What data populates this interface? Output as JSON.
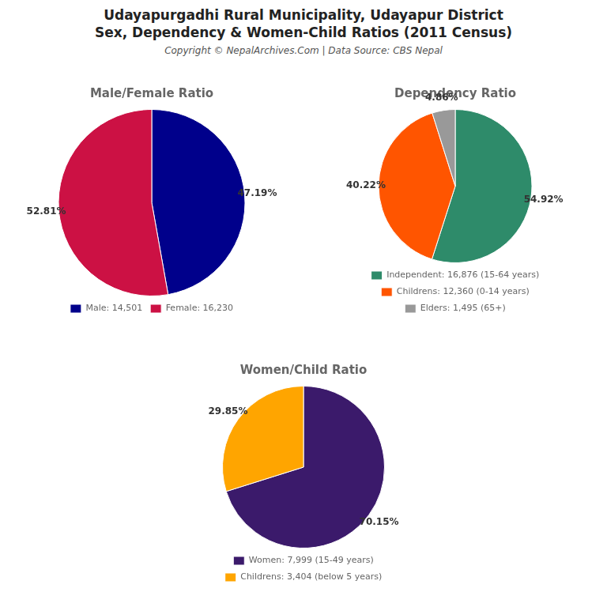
{
  "title": [
    "Udayapurgadhi Rural Municipality, Udayapur District",
    "Sex, Dependency & Women-Child Ratios (2011 Census)"
  ],
  "subtitle": "Copyright © NepalArchives.Com | Data Source: CBS Nepal",
  "chart_data": [
    {
      "type": "pie",
      "title": "Male/Female Ratio",
      "categories": [
        "Male: 14,501",
        "Female: 16,230"
      ],
      "values": [
        47.19,
        52.81
      ],
      "value_labels": [
        "47.19%",
        "52.81%"
      ],
      "colors": [
        "#00008B",
        "#CC1144"
      ],
      "data_labels": true,
      "legend": "bottom"
    },
    {
      "type": "pie",
      "title": "Dependency Ratio",
      "categories": [
        "Independent: 16,876 (15-64 years)",
        "Childrens: 12,360 (0-14 years)",
        "Elders: 1,495 (65+)"
      ],
      "values": [
        54.92,
        40.22,
        4.86
      ],
      "value_labels": [
        "54.92%",
        "40.22%",
        "4.86%"
      ],
      "colors": [
        "#2E8B6A",
        "#FF5500",
        "#999999"
      ],
      "data_labels": true,
      "legend": "bottom"
    },
    {
      "type": "pie",
      "title": "Women/Child Ratio",
      "categories": [
        "Women: 7,999 (15-49 years)",
        "Childrens: 3,404 (below 5 years)"
      ],
      "values": [
        70.15,
        29.85
      ],
      "value_labels": [
        "70.15%",
        "29.85%"
      ],
      "colors": [
        "#3B1A6B",
        "#FFA500"
      ],
      "data_labels": true,
      "legend": "bottom"
    }
  ]
}
